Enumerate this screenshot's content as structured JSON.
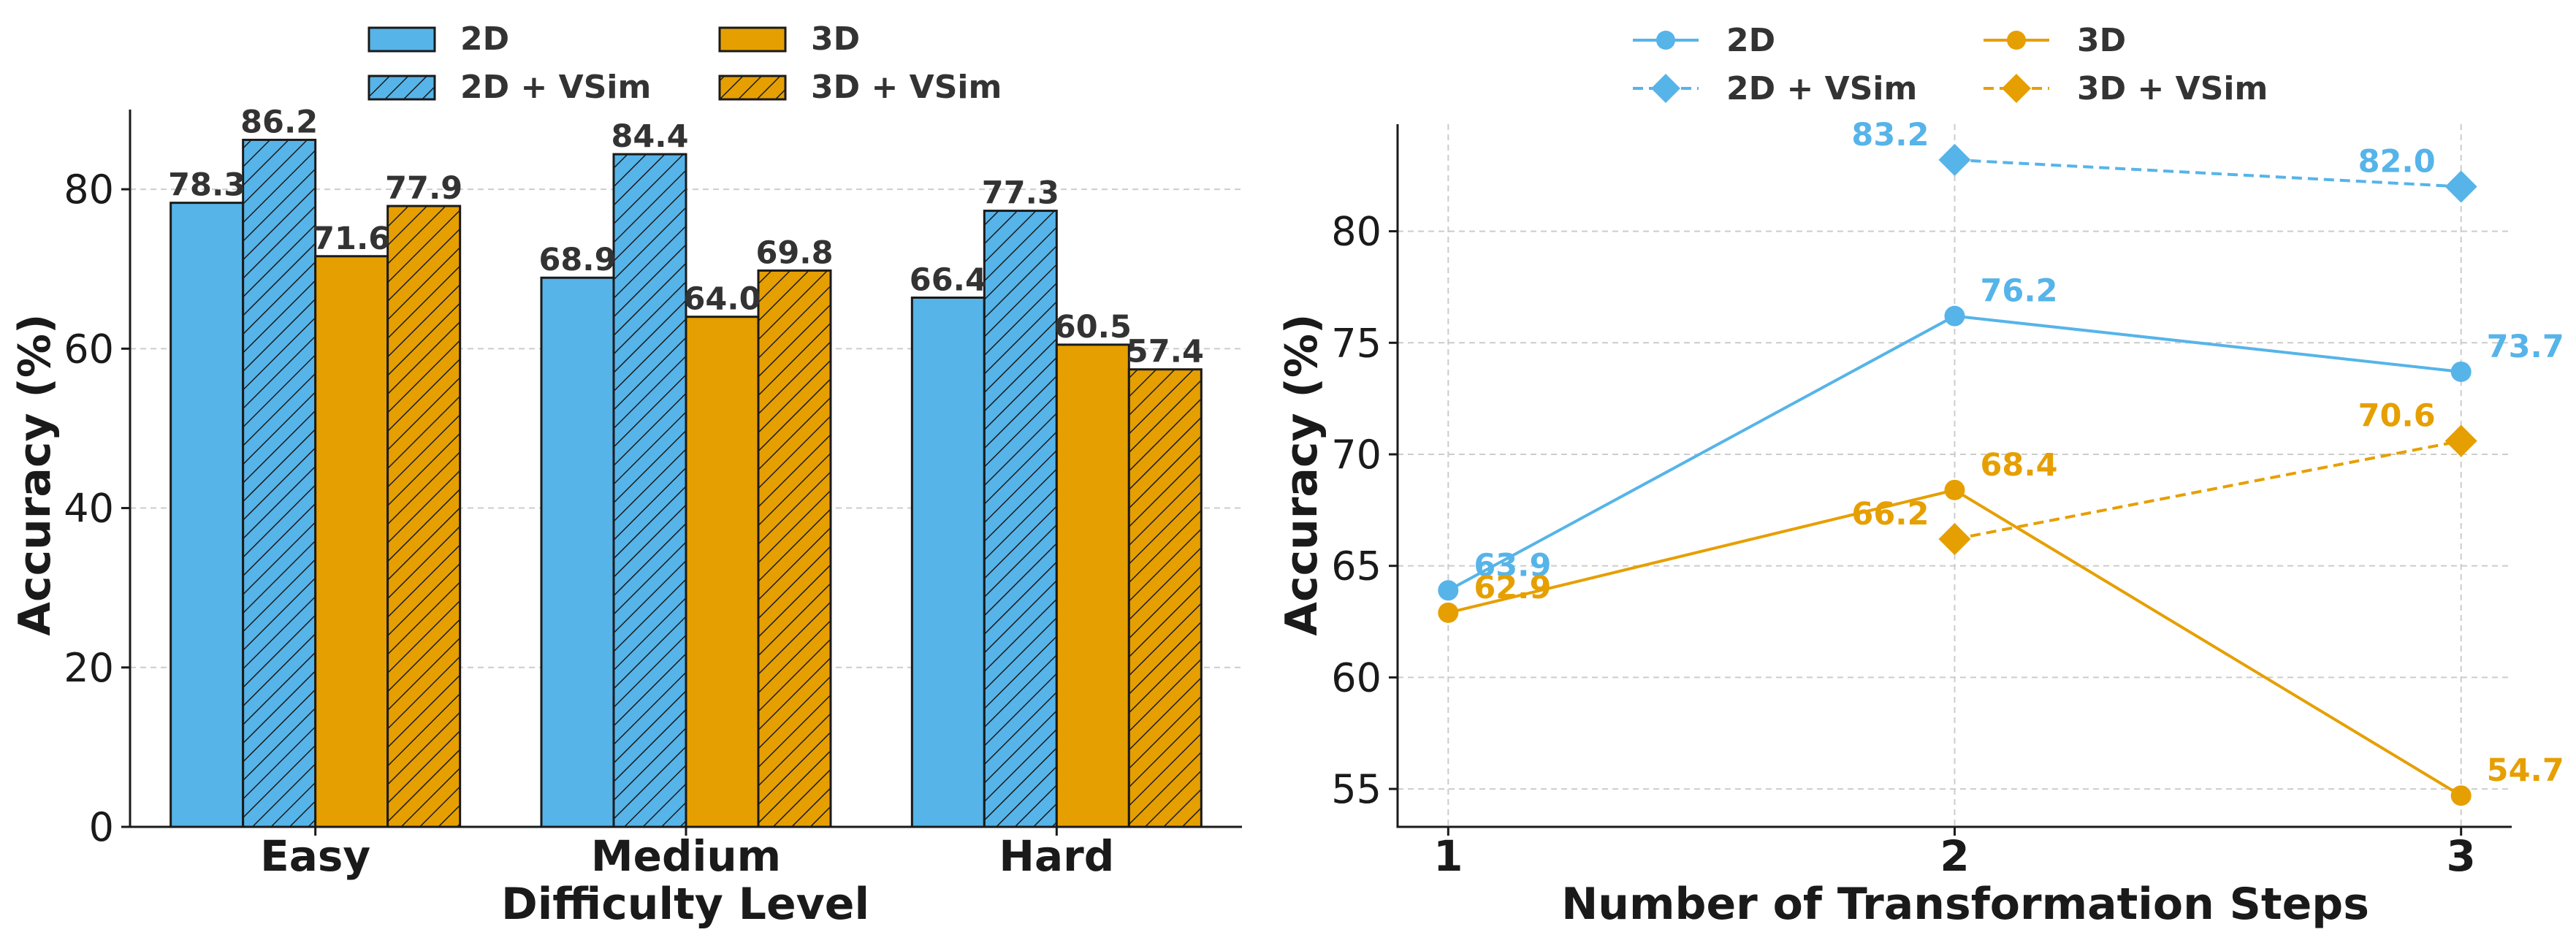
{
  "chart_data": [
    {
      "type": "bar",
      "title": "",
      "xlabel": "Difficulty Level",
      "ylabel": "Accuracy (%)",
      "ylim": [
        0,
        90
      ],
      "yticks": [
        0,
        20,
        40,
        60,
        80
      ],
      "grid": true,
      "legend_position": "top-center",
      "categories": [
        "Easy",
        "Medium",
        "Hard"
      ],
      "series": [
        {
          "name": "2D",
          "values": [
            78.3,
            68.9,
            66.4
          ],
          "color": "#56B4E9",
          "hatch": false
        },
        {
          "name": "2D + VSim",
          "values": [
            86.2,
            84.4,
            77.3
          ],
          "color": "#56B4E9",
          "hatch": true
        },
        {
          "name": "3D",
          "values": [
            71.6,
            64.0,
            60.5
          ],
          "color": "#E69F00",
          "hatch": false
        },
        {
          "name": "3D + VSim",
          "values": [
            77.9,
            69.8,
            57.4
          ],
          "color": "#E69F00",
          "hatch": true
        }
      ],
      "value_labels": [
        [
          "78.3",
          "68.9",
          "66.4"
        ],
        [
          "86.2",
          "84.4",
          "77.3"
        ],
        [
          "71.6",
          "64.0",
          "60.5"
        ],
        [
          "77.9",
          "69.8",
          "57.4"
        ]
      ]
    },
    {
      "type": "line",
      "title": "",
      "xlabel": "Number of Transformation Steps",
      "ylabel": "Accuracy (%)",
      "xlim": [
        0.9,
        3.1
      ],
      "ylim": [
        53.3,
        84.8
      ],
      "xticks": [
        1,
        2,
        3
      ],
      "yticks": [
        55,
        60,
        65,
        70,
        75,
        80
      ],
      "grid": true,
      "legend_position": "top-center",
      "series": [
        {
          "name": "2D",
          "x": [
            1,
            2,
            3
          ],
          "values": [
            63.9,
            76.2,
            73.7
          ],
          "labels": [
            "63.9",
            "76.2",
            "73.7"
          ],
          "color": "#56B4E9",
          "marker": "circle",
          "dashed": false
        },
        {
          "name": "2D + VSim",
          "x": [
            2,
            3
          ],
          "values": [
            83.2,
            82.0
          ],
          "labels": [
            "83.2",
            "82.0"
          ],
          "color": "#56B4E9",
          "marker": "diamond",
          "dashed": true
        },
        {
          "name": "3D",
          "x": [
            1,
            2,
            3
          ],
          "values": [
            62.9,
            68.4,
            54.7
          ],
          "labels": [
            "62.9",
            "68.4",
            "54.7"
          ],
          "color": "#E69F00",
          "marker": "circle",
          "dashed": false
        },
        {
          "name": "3D + VSim",
          "x": [
            2,
            3
          ],
          "values": [
            66.2,
            70.6
          ],
          "labels": [
            "66.2",
            "70.6"
          ],
          "color": "#E69F00",
          "marker": "diamond",
          "dashed": true
        }
      ]
    }
  ]
}
